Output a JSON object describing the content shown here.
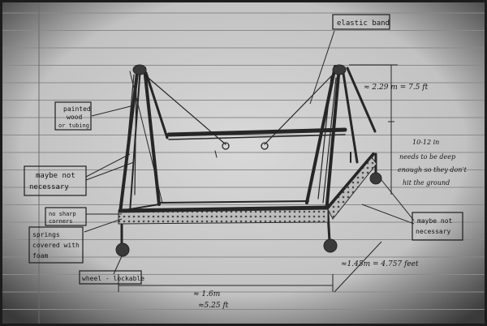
{
  "labels": {
    "elastic_band": "elastic band",
    "painted_wood": [
      "painted",
      "wood",
      "or tubing"
    ],
    "maybe_not_left": [
      "maybe not",
      "necessary"
    ],
    "no_sharp": [
      "no sharp",
      "corners"
    ],
    "springs": [
      "springs",
      "covered with",
      "foam"
    ],
    "wheel": "wheel - lockable",
    "maybe_not_right": [
      "maybe not",
      "necessary"
    ]
  },
  "measurements": {
    "height": "≈ 2.29 m = 7.5 ft",
    "clearance_value": "10-12 in",
    "clearance_note": [
      "needs to be deep",
      "enough so they don't",
      "hit the ground"
    ],
    "depth": "≈1.45m = 4.757 feet",
    "width_m": "≈ 1.6m",
    "width_ft": "≈5.25 ft"
  },
  "colors": {
    "paper_dark": "#1f1f1f",
    "paper_light": "#d6d6d6",
    "ruled_line": "#8a8a8a",
    "margin_line": "#6a6a6a",
    "pencil": "#2a2a2a"
  }
}
